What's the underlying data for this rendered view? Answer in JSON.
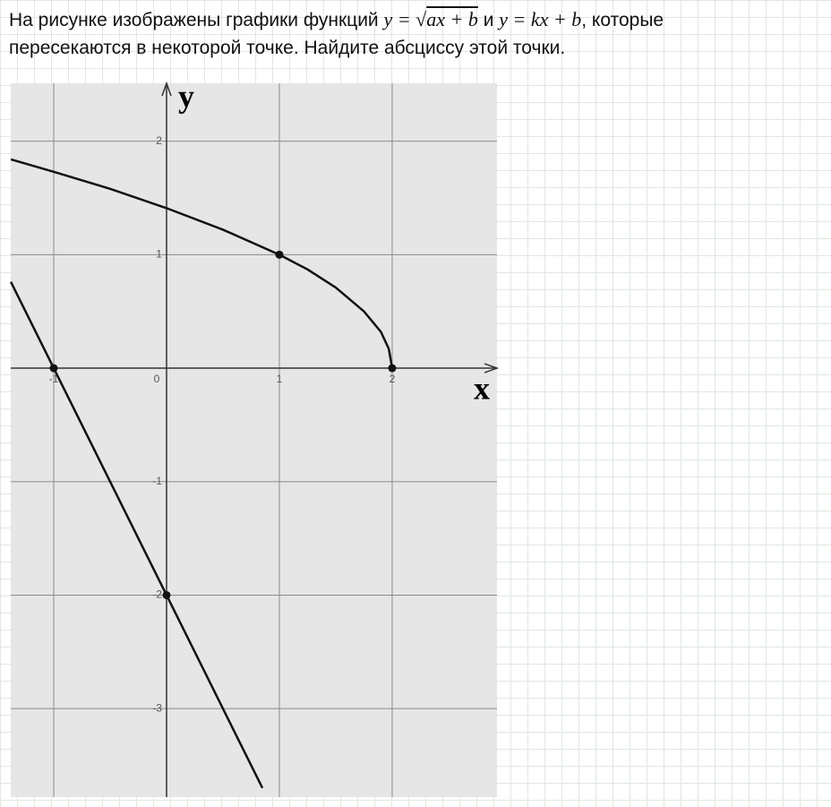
{
  "problem": {
    "text_before": "На рисунке изображены графики функций",
    "formula_1": {
      "lhs": "y =",
      "radical": "√",
      "radicand": "ax + b"
    },
    "connector": "и",
    "formula_2": "y = kx + b",
    "text_after": ", которые",
    "line_2": "пересекаются в некоторой точке. Найдите абсциссу этой точки."
  },
  "chart_data": {
    "type": "line",
    "x_label": "x",
    "y_label": "y",
    "xlim": [
      -1.381,
      2.929
    ],
    "ylim": [
      -3.78,
      2.51
    ],
    "xticks": [
      -1,
      0,
      1,
      2
    ],
    "yticks": [
      -3,
      -2,
      -1,
      1,
      2
    ],
    "grid": true,
    "series": [
      {
        "color": "#111111",
        "x": [
          -1.38,
          -1,
          -0.5,
          0,
          0.5,
          1,
          1.25,
          1.5,
          1.75,
          1.9,
          1.97,
          2
        ],
        "values": [
          1.84,
          1.73,
          1.58,
          1.41,
          1.22,
          1,
          0.87,
          0.71,
          0.5,
          0.32,
          0.17,
          0
        ]
      },
      {
        "color": "#111111",
        "x": [
          -1.38,
          0.85
        ],
        "values": [
          0.76,
          -3.7
        ]
      },
      {
        "color": "#111111",
        "marker": true,
        "x": [
          1,
          2,
          -1,
          0
        ],
        "values": [
          1,
          0,
          0,
          -2
        ]
      }
    ]
  }
}
